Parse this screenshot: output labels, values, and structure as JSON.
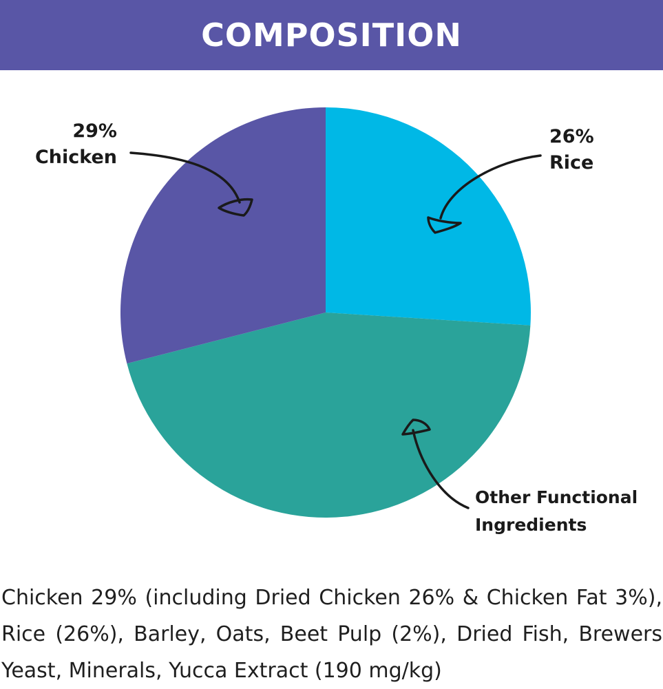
{
  "header": {
    "title": "COMPOSITION"
  },
  "colors": {
    "header_bg": "#5956a6",
    "chicken": "#5956a6",
    "rice": "#00b8e6",
    "other": "#2aa39a",
    "annotation": "#1a1a1a"
  },
  "chart_data": {
    "type": "pie",
    "title": "",
    "slices": [
      {
        "label": "Rice",
        "value": 26,
        "value_label": "26%",
        "color": "#00b8e6"
      },
      {
        "label": "Other Functional Ingredients",
        "value": 45,
        "value_label": "",
        "color": "#2aa39a"
      },
      {
        "label": "Chicken",
        "value": 29,
        "value_label": "29%",
        "color": "#5956a6"
      }
    ],
    "start": "top",
    "direction": "clockwise",
    "annotations": {
      "chicken": {
        "line1": "29%",
        "line2": "Chicken"
      },
      "rice": {
        "line1": "26%",
        "line2": "Rice"
      },
      "other": {
        "line1": "Other Functional",
        "line2": "Ingredients"
      }
    }
  },
  "ingredients": {
    "line1": "Chicken 29% (including Dried Chicken 26% & Chicken Fat 3%),",
    "line2": "Rice (26%), Barley, Oats, Beet Pulp (2%), Dried Fish, Brewers",
    "line3": "Yeast, Minerals, Yucca Extract (190 mg/kg)"
  }
}
